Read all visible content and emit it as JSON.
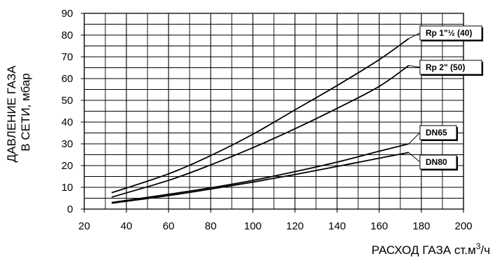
{
  "chart_data": {
    "type": "line",
    "title": "",
    "xlabel": "РАСХОД ГАЗА ст.м",
    "xlabel_sup": "3",
    "xlabel_suffix": "/ч",
    "ylabel_lines": [
      "ДАВЛЕНИЕ ГАЗА",
      "В СЕТИ, мбар"
    ],
    "xlim": [
      20,
      200
    ],
    "ylim": [
      0,
      90
    ],
    "x_ticks": [
      20,
      40,
      60,
      80,
      100,
      120,
      140,
      160,
      180,
      200
    ],
    "y_ticks": [
      0,
      10,
      20,
      30,
      40,
      50,
      60,
      70,
      80,
      90
    ],
    "x_minor_step": 10,
    "y_minor_step": 5,
    "grid": true,
    "legend": "right-side callout labels",
    "series": [
      {
        "name": "Rp 1\"½ (40)",
        "x": [
          33,
          60,
          80,
          100,
          120,
          140,
          160,
          174
        ],
        "y": [
          7.5,
          16.2,
          24.6,
          34.4,
          45.6,
          56.8,
          68.7,
          78.4
        ]
      },
      {
        "name": "Rp 2\" (50)",
        "x": [
          33,
          60,
          80,
          100,
          120,
          140,
          160,
          174
        ],
        "y": [
          5.5,
          13.2,
          20.3,
          28.2,
          36.9,
          46.3,
          56.4,
          66
        ]
      },
      {
        "name": "DN65",
        "x": [
          33,
          60,
          80,
          100,
          120,
          140,
          160,
          174
        ],
        "y": [
          3,
          6.8,
          9.8,
          13.2,
          17.2,
          21.6,
          26.6,
          30
        ]
      },
      {
        "name": "DN80",
        "x": [
          33,
          60,
          80,
          100,
          120,
          140,
          160,
          174
        ],
        "y": [
          2.7,
          6.2,
          9.2,
          12.4,
          15.9,
          19.6,
          23.4,
          26
        ]
      }
    ]
  }
}
